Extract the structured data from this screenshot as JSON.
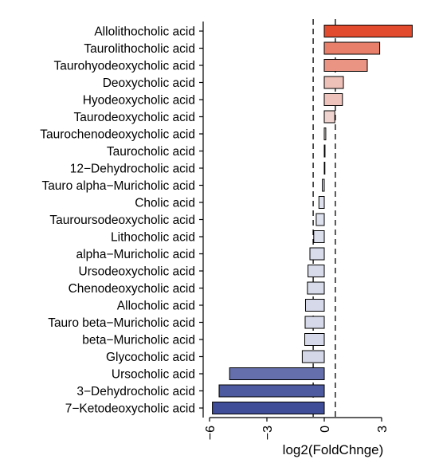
{
  "chart_data": {
    "type": "bar",
    "orientation": "horizontal",
    "xlabel": "log2(FoldChnge)",
    "ylabel": "",
    "xlim": [
      -6.4,
      5.2
    ],
    "xticks": [
      -6,
      -3,
      0,
      3
    ],
    "xtick_labels": [
      "−6",
      "−3",
      "0",
      "3"
    ],
    "reference_lines": [
      -0.58,
      0.58
    ],
    "categories": [
      "Allolithocholic acid",
      "Taurolithocholic acid",
      "Taurohyodeoxycholic acid",
      "Deoxycholic acid",
      "Hyodeoxycholic acid",
      "Taurodeoxycholic acid",
      "Taurochenodeoxycholic acid",
      "Taurocholic acid",
      "12−Dehydrocholic acid",
      "Tauro alpha−Muricholic acid",
      "Cholic acid",
      "Tauroursodeoxycholic acid",
      "Lithocholic acid",
      "alpha−Muricholic acid",
      "Ursodeoxycholic acid",
      "Chenodeoxycholic acid",
      "Allocholic acid",
      "Tauro beta−Muricholic acid",
      "beta−Muricholic acid",
      "Glycocholic acid",
      "Ursocholic acid",
      "3−Dehydrocholic acid",
      "7−Ketodeoxycholic acid"
    ],
    "values": [
      4.6,
      2.9,
      2.25,
      1.0,
      0.95,
      0.55,
      0.08,
      0.04,
      0.0,
      -0.1,
      -0.28,
      -0.42,
      -0.55,
      -0.75,
      -0.85,
      -0.88,
      -0.98,
      -1.0,
      -1.02,
      -1.15,
      -4.95,
      -5.5,
      -5.85
    ],
    "colors": {
      "max_positive": "#e34b2e",
      "neutral": "#f2f2f2",
      "max_negative": "#3f4c97",
      "bar_outline": "#000000"
    },
    "grid": false,
    "legend": "none"
  }
}
